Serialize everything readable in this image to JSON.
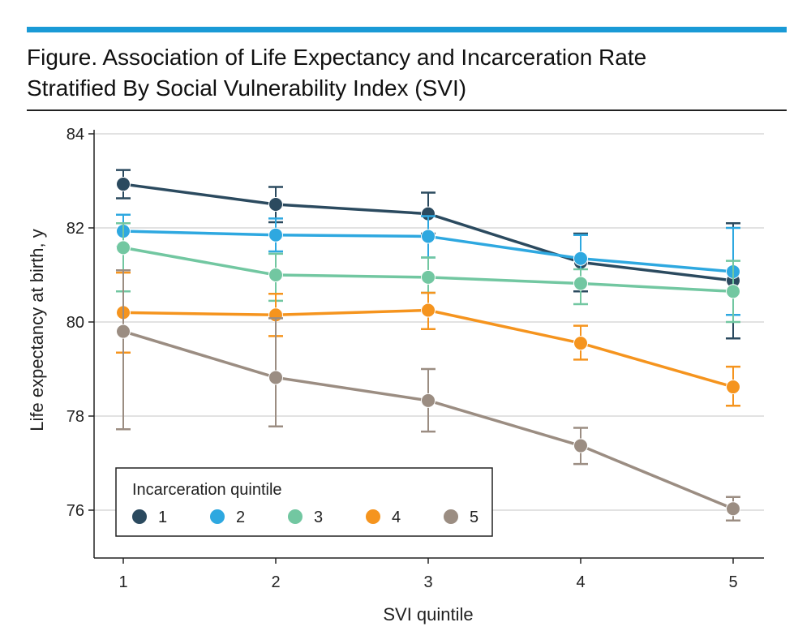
{
  "figure": {
    "title_line1": "Figure. Association of Life Expectancy and Incarceration Rate",
    "title_line2": "Stratified By Social Vulnerability Index (SVI)",
    "accent_color": "#1a9ad6"
  },
  "chart_data": {
    "type": "line",
    "title": "Association of Life Expectancy and Incarceration Rate Stratified By Social Vulnerability Index (SVI)",
    "xlabel": "SVI quintile",
    "ylabel": "Life expectancy at birth, y",
    "x": [
      1,
      2,
      3,
      4,
      5
    ],
    "xticks": [
      "1",
      "2",
      "3",
      "4",
      "5"
    ],
    "yticks": [
      76,
      78,
      80,
      82,
      84
    ],
    "ylim": [
      75,
      84
    ],
    "grid": "horizontal",
    "legend": {
      "title": "Incarceration quintile",
      "placement": "bottom-left"
    },
    "series": [
      {
        "name": "1",
        "color": "#2b4a5f",
        "values": [
          82.93,
          82.5,
          82.3,
          81.27,
          80.88
        ],
        "lower": [
          82.63,
          82.12,
          81.88,
          80.65,
          79.65
        ],
        "upper": [
          83.23,
          82.87,
          82.75,
          81.88,
          82.1
        ]
      },
      {
        "name": "2",
        "color": "#2ea8e0",
        "values": [
          81.93,
          81.85,
          81.82,
          81.35,
          81.07
        ],
        "lower": [
          81.6,
          81.5,
          81.37,
          80.82,
          80.15
        ],
        "upper": [
          82.28,
          82.2,
          82.25,
          81.85,
          82.0
        ]
      },
      {
        "name": "3",
        "color": "#72c7a1",
        "values": [
          81.58,
          81.0,
          80.95,
          80.82,
          80.65
        ],
        "lower": [
          80.65,
          80.45,
          80.62,
          80.38,
          80.0
        ],
        "upper": [
          82.1,
          81.45,
          81.37,
          81.12,
          81.3
        ]
      },
      {
        "name": "4",
        "color": "#f5941e",
        "values": [
          80.2,
          80.15,
          80.25,
          79.55,
          78.62
        ],
        "lower": [
          79.35,
          79.7,
          79.85,
          79.2,
          78.22
        ],
        "upper": [
          81.05,
          80.6,
          80.62,
          79.92,
          79.05
        ]
      },
      {
        "name": "5",
        "color": "#9b8d82",
        "values": [
          79.8,
          78.82,
          78.33,
          77.37,
          76.03
        ],
        "lower": [
          77.72,
          77.78,
          77.67,
          76.98,
          75.78
        ],
        "upper": [
          81.1,
          80.08,
          79.0,
          77.75,
          76.28
        ]
      }
    ]
  }
}
